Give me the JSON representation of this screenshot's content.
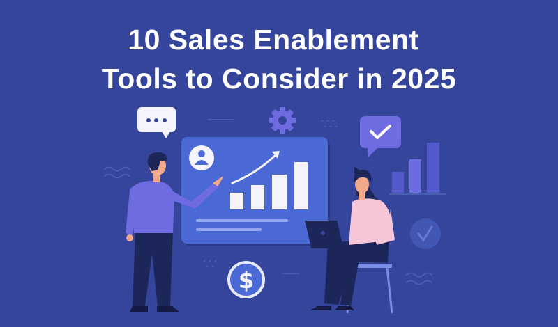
{
  "title": {
    "line1": "10 Sales Enablement",
    "line2": "Tools to Consider in 2025"
  },
  "illustration": {
    "icons": [
      "chat-bubble-icon",
      "gear-icon",
      "check-bubble-icon",
      "bar-chart-icon",
      "check-circle-icon",
      "dollar-coin-icon",
      "user-avatar-icon",
      "trend-arrow-icon",
      "laptop-icon"
    ],
    "colors": {
      "background": "#34459b",
      "board": "#4a69d4",
      "accent": "#6f6be0",
      "white": "#f5f3fb",
      "navy": "#1c2659",
      "pink": "#f6c6d8",
      "skin": "#f2a88a"
    }
  }
}
